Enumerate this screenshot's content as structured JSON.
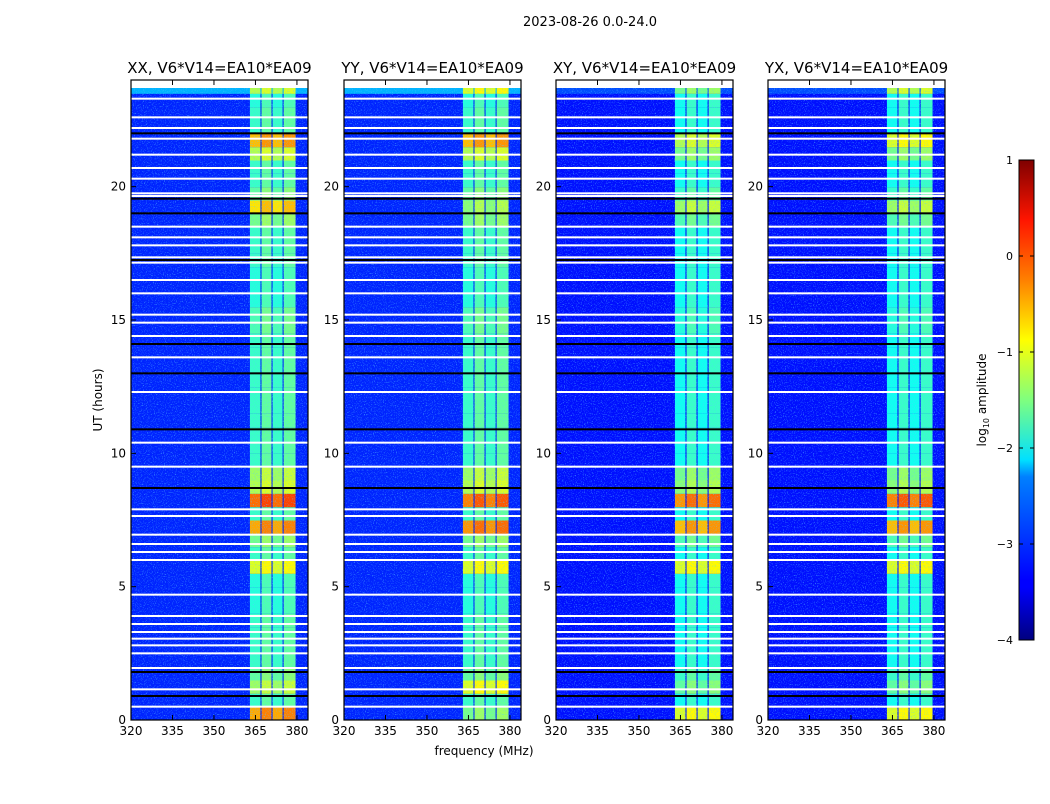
{
  "suptitle": "2023-08-26 0.0-24.0",
  "chart_data": {
    "type": "heatmap",
    "title": "2023-08-26 0.0-24.0",
    "xlabel": "frequency (MHz)",
    "ylabel": "UT (hours)",
    "xlim": [
      320,
      384
    ],
    "ylim": [
      0,
      24
    ],
    "xticks": [
      320,
      335,
      350,
      365,
      380
    ],
    "yticks": [
      0,
      5,
      10,
      15,
      20
    ],
    "colorbar": {
      "label": "log10 amplitude",
      "label_main": "log",
      "label_sub": "10",
      "label_rest": " amplitude",
      "range": [
        -4,
        1
      ],
      "ticks": [
        1,
        0,
        -1,
        -2,
        -3,
        -4
      ],
      "tick_labels": [
        "1",
        "0",
        "−1",
        "−2",
        "−3",
        "−4"
      ],
      "colormap": "jet"
    },
    "time_bin_hours": 0.5,
    "bright_subbands_mhz": [
      [
        363,
        366.8
      ],
      [
        367.2,
        370.8
      ],
      [
        371.2,
        374.8
      ],
      [
        375.2,
        379.5
      ]
    ],
    "flagged_hours_white": [
      0.5,
      1.15,
      1.95,
      2.5,
      2.8,
      3.05,
      3.3,
      3.6,
      3.9,
      4.7,
      6.0,
      6.3,
      6.6,
      6.95,
      7.65,
      7.9,
      9.5,
      10.4,
      12.3,
      13.6,
      14.4,
      14.9,
      15.2,
      16.0,
      16.5,
      17.15,
      17.35,
      17.8,
      18.1,
      18.5,
      19.65,
      19.75,
      20.3,
      20.7,
      21.2,
      21.8,
      22.2,
      22.6,
      23.3
    ],
    "zero_hours_black": [
      0.9,
      1.8,
      8.7,
      10.9,
      13.0,
      14.1,
      17.25,
      19.0,
      19.55,
      22.0
    ],
    "panels": [
      {
        "title": "XX, V6*V14=EA10*EA09",
        "background_level": -3.2,
        "top_level": -2.5,
        "band_levels": [
          -0.4,
          -1.8,
          -1.3,
          -1.6,
          -1.8,
          -1.8,
          -1.8,
          -1.8,
          -1.9,
          -1.9,
          -1.9,
          -1.0,
          -1.8,
          -1.5,
          -0.4,
          -1.8,
          -0.1,
          -1.2,
          -1.3,
          -1.8,
          -1.8,
          -1.8,
          -1.8,
          -1.8,
          -1.8,
          -1.8,
          -1.8,
          -1.8,
          -1.8,
          -1.7,
          -1.7,
          -1.9,
          -1.9,
          -1.9,
          -1.8,
          -1.8,
          -1.8,
          -1.5,
          -0.7,
          -1.6,
          -1.8,
          -1.8,
          -1.2,
          -0.5,
          -1.8,
          -1.8,
          -1.9,
          -1.2
        ]
      },
      {
        "title": "YY, V6*V14=EA10*EA09",
        "background_level": -3.2,
        "top_level": -2.5,
        "band_levels": [
          -1.5,
          -1.8,
          -1.0,
          -1.6,
          -1.8,
          -1.8,
          -1.8,
          -1.8,
          -1.9,
          -1.9,
          -1.9,
          -1.0,
          -1.8,
          -1.5,
          -0.3,
          -1.8,
          -0.2,
          -1.2,
          -1.3,
          -1.8,
          -1.8,
          -1.8,
          -1.8,
          -1.8,
          -1.8,
          -1.8,
          -1.8,
          -1.8,
          -1.8,
          -1.7,
          -1.7,
          -1.9,
          -1.9,
          -1.9,
          -1.8,
          -1.8,
          -1.8,
          -1.5,
          -1.4,
          -1.6,
          -1.8,
          -1.8,
          -1.2,
          -0.5,
          -1.8,
          -1.8,
          -1.9,
          -1.0
        ]
      },
      {
        "title": "XY, V6*V14=EA10*EA09",
        "background_level": -3.3,
        "top_level": -3.0,
        "band_levels": [
          -1.0,
          -2.0,
          -1.6,
          -1.8,
          -2.0,
          -2.0,
          -2.0,
          -2.0,
          -2.0,
          -2.0,
          -2.0,
          -1.0,
          -2.0,
          -1.7,
          -0.5,
          -2.0,
          -0.3,
          -1.4,
          -1.5,
          -2.0,
          -2.0,
          -2.0,
          -2.0,
          -2.0,
          -2.0,
          -2.0,
          -2.0,
          -2.0,
          -2.0,
          -1.9,
          -1.9,
          -2.0,
          -2.0,
          -2.0,
          -2.0,
          -2.0,
          -2.0,
          -1.7,
          -1.3,
          -1.8,
          -2.0,
          -2.0,
          -1.5,
          -1.2,
          -2.0,
          -2.0,
          -2.0,
          -1.5
        ]
      },
      {
        "title": "YX, V6*V14=EA10*EA09",
        "background_level": -3.3,
        "top_level": -3.0,
        "band_levels": [
          -1.0,
          -2.0,
          -1.6,
          -1.8,
          -2.0,
          -2.0,
          -2.0,
          -2.0,
          -2.0,
          -2.0,
          -2.0,
          -1.0,
          -2.0,
          -1.7,
          -0.5,
          -2.0,
          -0.2,
          -1.4,
          -1.5,
          -2.0,
          -2.0,
          -2.0,
          -2.0,
          -2.0,
          -2.0,
          -2.0,
          -2.0,
          -2.0,
          -2.0,
          -1.9,
          -1.9,
          -2.0,
          -2.0,
          -2.0,
          -2.0,
          -2.0,
          -2.0,
          -1.7,
          -1.3,
          -1.8,
          -2.0,
          -2.0,
          -1.5,
          -1.0,
          -2.0,
          -2.0,
          -2.0,
          -1.2
        ]
      }
    ]
  }
}
